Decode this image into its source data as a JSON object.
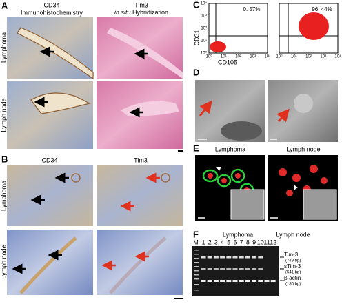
{
  "panel_a": {
    "label": "A",
    "column_1": {
      "title": "CD34",
      "subtitle": "Immunohistochemistry"
    },
    "column_2": {
      "title": "Tim3",
      "subtitle_italic": "in situ",
      "subtitle": "Hybridization"
    },
    "rows": [
      "Lymphoma",
      "Lymph node"
    ]
  },
  "panel_b": {
    "label": "B",
    "columns": [
      "CD34",
      "Tim3"
    ],
    "rows": [
      "Lymphoma",
      "Lymph node"
    ]
  },
  "panel_c": {
    "label": "C",
    "percentages": [
      "0. 57%",
      "96. 44%"
    ],
    "y_label": "CD31",
    "x_label": "CD105",
    "ticks": [
      "10⁰",
      "10¹",
      "10²",
      "10³",
      "10⁴"
    ]
  },
  "panel_d": {
    "label": "D"
  },
  "panel_e": {
    "label": "E",
    "titles": [
      "Lymphoma",
      "Lymph node"
    ]
  },
  "panel_f": {
    "label": "F",
    "groups": [
      "Lymphoma",
      "Lymph node"
    ],
    "marker": "M",
    "lanes": [
      "1",
      "2",
      "3",
      "4",
      "5",
      "6",
      "7",
      "8",
      "9",
      "10",
      "11",
      "12"
    ],
    "bands": [
      {
        "name": "Tim-3",
        "size": "(749 bp)"
      },
      {
        "name": "sTim-3",
        "size": "(541 bp)"
      },
      {
        "name": "β-actin",
        "size": "(180 bp)"
      }
    ]
  }
}
